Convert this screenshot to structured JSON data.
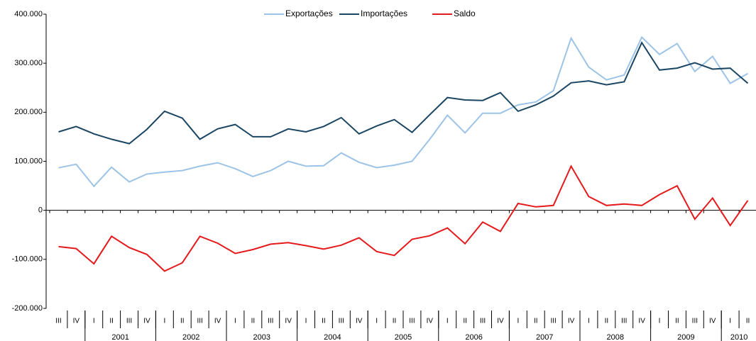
{
  "chart_data": {
    "type": "line",
    "categories": [
      "III",
      "IV",
      "I",
      "II",
      "III",
      "IV",
      "I",
      "II",
      "III",
      "IV",
      "I",
      "II",
      "III",
      "IV",
      "I",
      "II",
      "III",
      "IV",
      "I",
      "II",
      "III",
      "IV",
      "I",
      "II",
      "III",
      "IV",
      "I",
      "II",
      "III",
      "IV",
      "I",
      "II",
      "III",
      "IV",
      "I",
      "II",
      "III",
      "IV",
      "I",
      "II"
    ],
    "year_groups": [
      {
        "label": null,
        "count": 2
      },
      {
        "label": "2001",
        "count": 4
      },
      {
        "label": "2002",
        "count": 4
      },
      {
        "label": "2003",
        "count": 4
      },
      {
        "label": "2004",
        "count": 4
      },
      {
        "label": "2005",
        "count": 4
      },
      {
        "label": "2006",
        "count": 4
      },
      {
        "label": "2007",
        "count": 4
      },
      {
        "label": "2008",
        "count": 4
      },
      {
        "label": "2009",
        "count": 4
      },
      {
        "label": "2010",
        "count": 2
      }
    ],
    "series": [
      {
        "name": "Exportações",
        "color": "#9dc3e6",
        "values": [
          86700,
          94000,
          49000,
          88000,
          58000,
          74000,
          78000,
          81000,
          90000,
          97000,
          85000,
          69000,
          81000,
          100000,
          90000,
          91000,
          117000,
          98000,
          87000,
          92000,
          100000,
          145000,
          194000,
          158000,
          198000,
          198000,
          215000,
          221000,
          244000,
          351000,
          292000,
          266000,
          276000,
          353000,
          318000,
          340000,
          283000,
          314000,
          259000,
          279000
        ]
      },
      {
        "name": "Importações",
        "color": "#1b4663",
        "values": [
          160000,
          171000,
          156000,
          145000,
          136000,
          165000,
          202000,
          188000,
          145000,
          166000,
          175000,
          150000,
          150000,
          166000,
          160000,
          171000,
          189000,
          156000,
          172000,
          185000,
          159000,
          195000,
          230000,
          225000,
          224000,
          240000,
          202000,
          215000,
          233000,
          260000,
          264000,
          256000,
          262000,
          342000,
          286000,
          290000,
          301000,
          288000,
          290000,
          259000
        ]
      },
      {
        "name": "Saldo",
        "color": "#e41a1c",
        "values": [
          -74000,
          -78000,
          -109000,
          -53000,
          -76000,
          -90000,
          -124000,
          -107000,
          -53000,
          -67000,
          -88000,
          -80000,
          -69000,
          -66000,
          -72000,
          -79000,
          -71000,
          -56000,
          -84000,
          -92000,
          -59000,
          -52000,
          -36000,
          -68000,
          -24000,
          -43000,
          14000,
          7000,
          10000,
          90000,
          28000,
          10000,
          13000,
          10000,
          32000,
          50000,
          -18000,
          25000,
          -31000,
          20000
        ]
      }
    ],
    "ylim": [
      -200000,
      400000
    ],
    "yticks": [
      {
        "value": -200000,
        "label": "-200.000"
      },
      {
        "value": -100000,
        "label": "-100.000"
      },
      0,
      {
        "value": 100000,
        "label": "100.000"
      },
      {
        "value": 200000,
        "label": "200.000"
      },
      {
        "value": 300000,
        "label": "300.000"
      },
      {
        "value": 400000,
        "label": "400.000"
      }
    ],
    "grid": false,
    "legend": "top"
  }
}
